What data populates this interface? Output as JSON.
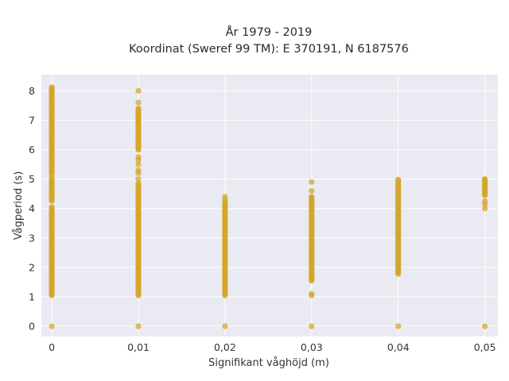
{
  "chart_data": {
    "type": "scatter",
    "title": "År 1979 - 2019",
    "subtitle": "Koordinat (Sweref 99 TM): E 370191, N 6187576",
    "xlabel": "Signifikant våghöjd (m)",
    "ylabel": "Vågperiod (s)",
    "xlim": [
      -0.0012,
      0.0515
    ],
    "ylim": [
      -0.35,
      8.55
    ],
    "x_ticks": [
      {
        "value": 0,
        "label": "0"
      },
      {
        "value": 0.01,
        "label": "0,01"
      },
      {
        "value": 0.02,
        "label": "0,02"
      },
      {
        "value": 0.03,
        "label": "0,03"
      },
      {
        "value": 0.04,
        "label": "0,04"
      },
      {
        "value": 0.05,
        "label": "0,05"
      }
    ],
    "y_ticks": [
      {
        "value": 0,
        "label": "0"
      },
      {
        "value": 1,
        "label": "1"
      },
      {
        "value": 2,
        "label": "2"
      },
      {
        "value": 3,
        "label": "3"
      },
      {
        "value": 4,
        "label": "4"
      },
      {
        "value": 5,
        "label": "5"
      },
      {
        "value": 6,
        "label": "6"
      },
      {
        "value": 7,
        "label": "7"
      },
      {
        "value": 8,
        "label": "8"
      }
    ],
    "grid": true,
    "colors": {
      "points": "#d4a62a",
      "plot_bg": "#eaeaf2",
      "grid": "#ffffff"
    },
    "columns": [
      {
        "x": 0,
        "ranges": [
          [
            1.05,
            4.05
          ],
          [
            4.3,
            5.0
          ],
          [
            5.2,
            8.12
          ]
        ],
        "points": [
          0,
          4.25,
          4.35,
          4.5,
          5.1,
          5.4,
          5.5
        ]
      },
      {
        "x": 0.01,
        "ranges": [
          [
            1.05,
            4.85
          ],
          [
            6.0,
            7.4
          ]
        ],
        "points": [
          0,
          5.0,
          5.2,
          5.3,
          5.5,
          5.65,
          5.75,
          6.2,
          6.3,
          6.6,
          6.8,
          7.0,
          7.25,
          7.6,
          8.0
        ]
      },
      {
        "x": 0.02,
        "ranges": [
          [
            1.05,
            4.2
          ]
        ],
        "points": [
          0,
          4.3,
          4.4
        ]
      },
      {
        "x": 0.03,
        "ranges": [
          [
            1.55,
            4.4
          ]
        ],
        "points": [
          0,
          1.05,
          1.1,
          4.6,
          4.9
        ]
      },
      {
        "x": 0.04,
        "ranges": [
          [
            1.78,
            4.98
          ]
        ],
        "points": [
          0
        ]
      },
      {
        "x": 0.05,
        "ranges": [
          [
            4.45,
            5.0
          ]
        ],
        "points": [
          0,
          4.0,
          4.15,
          4.25
        ]
      }
    ]
  }
}
